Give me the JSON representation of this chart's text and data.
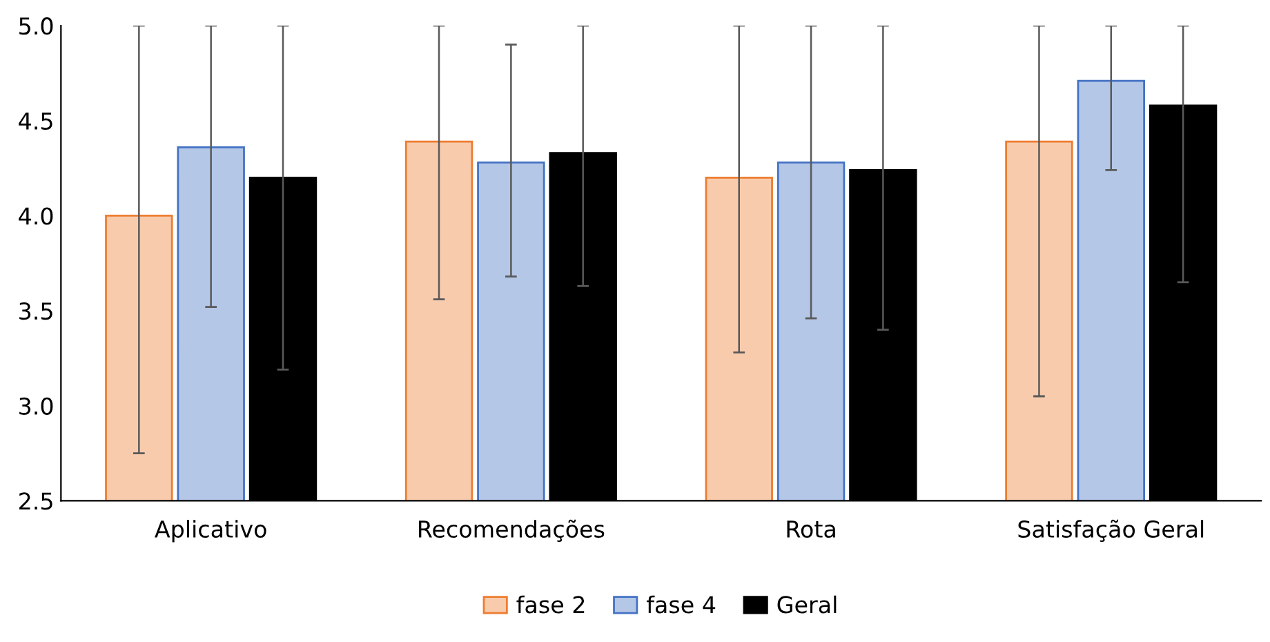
{
  "chart_data": {
    "type": "bar",
    "categories": [
      "Aplicativo",
      "Recomendações",
      "Rota",
      "Satisfação Geral"
    ],
    "series": [
      {
        "name": "fase 2",
        "color": "#f8cbad",
        "values": [
          4.0,
          4.39,
          4.2,
          4.39
        ],
        "errors": [
          [
            2.75,
            5.0
          ],
          [
            3.56,
            5.0
          ],
          [
            3.28,
            5.0
          ],
          [
            3.05,
            5.0
          ]
        ]
      },
      {
        "name": "fase 4",
        "color": "#b4c7e7",
        "values": [
          4.36,
          4.28,
          4.28,
          4.71
        ],
        "errors": [
          [
            3.52,
            5.0
          ],
          [
            3.68,
            4.9
          ],
          [
            3.46,
            5.0
          ],
          [
            4.24,
            5.0
          ]
        ]
      },
      {
        "name": "Geral",
        "color": "#000000",
        "values": [
          4.2,
          4.33,
          4.24,
          4.58
        ],
        "errors": [
          [
            3.19,
            5.0
          ],
          [
            3.63,
            5.0
          ],
          [
            3.4,
            5.0
          ],
          [
            3.65,
            5.0
          ]
        ]
      }
    ],
    "ylim": [
      2.5,
      5.0
    ],
    "yticks": [
      2.5,
      {
        "value": 3,
        "label": "3.0"
      },
      3.5,
      {
        "value": 4,
        "label": "4.0"
      },
      4.5,
      {
        "value": 5,
        "label": "5.0"
      }
    ],
    "grid": false,
    "legend": "bottom"
  }
}
